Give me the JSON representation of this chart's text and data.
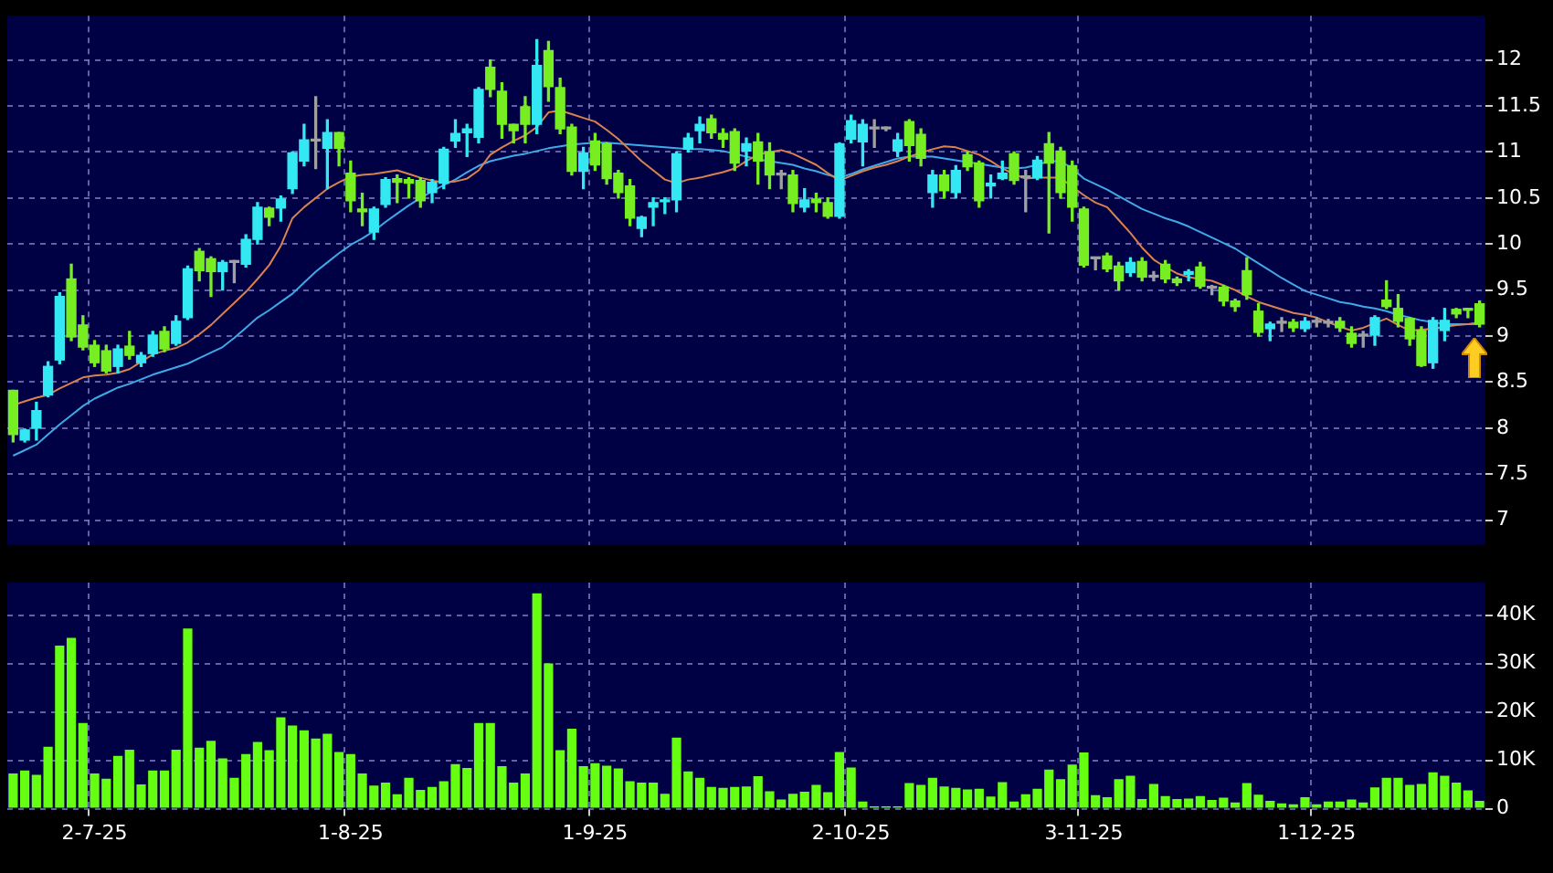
{
  "chart_data": [
    {
      "type": "candlestick",
      "categories": [
        null,
        null,
        null,
        null,
        null,
        null,
        null,
        null,
        null,
        null,
        null,
        null,
        null,
        null,
        null,
        null,
        null,
        null,
        null,
        null,
        null,
        null,
        null,
        null,
        null,
        null,
        null,
        null,
        null,
        null,
        null,
        null,
        null,
        null,
        null,
        null,
        null,
        null,
        null,
        null,
        null,
        null,
        null,
        null,
        null,
        null,
        null,
        null,
        null,
        null,
        null,
        null,
        null,
        null,
        null,
        null,
        null,
        null,
        null,
        null,
        null,
        null,
        null,
        null,
        null,
        null,
        null,
        null,
        null,
        null,
        null,
        null,
        null,
        null,
        null,
        null,
        null,
        null,
        null,
        null,
        null,
        null,
        null,
        null,
        null,
        null,
        null,
        null,
        null,
        null,
        null,
        null,
        null,
        null,
        null,
        null,
        null,
        null,
        null,
        null,
        null,
        null,
        null,
        null,
        null,
        null,
        null,
        null,
        null,
        null,
        null,
        null,
        null,
        null,
        null,
        null,
        null,
        null,
        null,
        null,
        null,
        null,
        null,
        null,
        null,
        null,
        null
      ],
      "ohlc": [
        [
          8.41,
          8.41,
          7.85,
          7.93
        ],
        [
          7.87,
          7.99,
          7.85,
          7.98
        ],
        [
          8.0,
          8.28,
          7.87,
          8.19
        ],
        [
          8.36,
          8.72,
          8.34,
          8.67
        ],
        [
          8.74,
          9.47,
          8.7,
          9.43
        ],
        [
          9.62,
          9.78,
          8.95,
          8.99
        ],
        [
          9.12,
          9.22,
          8.85,
          8.88
        ],
        [
          8.9,
          8.95,
          8.67,
          8.71
        ],
        [
          8.84,
          8.9,
          8.6,
          8.62
        ],
        [
          8.67,
          8.9,
          8.6,
          8.86
        ],
        [
          8.89,
          9.05,
          8.75,
          8.79
        ],
        [
          8.71,
          8.82,
          8.67,
          8.79
        ],
        [
          8.81,
          9.05,
          8.78,
          9.01
        ],
        [
          9.05,
          9.1,
          8.83,
          8.86
        ],
        [
          8.92,
          9.22,
          8.9,
          9.16
        ],
        [
          9.2,
          9.76,
          9.18,
          9.73
        ],
        [
          9.92,
          9.95,
          9.6,
          9.71
        ],
        [
          9.84,
          9.86,
          9.43,
          9.7
        ],
        [
          9.7,
          9.82,
          9.5,
          9.8
        ],
        [
          9.8,
          9.82,
          9.58,
          9.8
        ],
        [
          9.78,
          10.1,
          9.75,
          10.05
        ],
        [
          10.05,
          10.45,
          10.0,
          10.4
        ],
        [
          10.39,
          10.4,
          10.2,
          10.29
        ],
        [
          10.39,
          10.52,
          10.25,
          10.49
        ],
        [
          10.6,
          11.0,
          10.55,
          10.99
        ],
        [
          10.9,
          11.3,
          10.85,
          11.13
        ],
        [
          11.12,
          11.6,
          10.82,
          11.12
        ],
        [
          11.04,
          11.35,
          10.6,
          11.21
        ],
        [
          11.21,
          11.21,
          10.85,
          11.04
        ],
        [
          10.77,
          10.9,
          10.35,
          10.47
        ],
        [
          10.38,
          10.55,
          10.2,
          10.35
        ],
        [
          10.13,
          10.4,
          10.05,
          10.38
        ],
        [
          10.43,
          10.72,
          10.4,
          10.7
        ],
        [
          10.71,
          10.75,
          10.45,
          10.67
        ],
        [
          10.7,
          10.72,
          10.5,
          10.66
        ],
        [
          10.69,
          10.72,
          10.4,
          10.47
        ],
        [
          10.56,
          10.7,
          10.45,
          10.67
        ],
        [
          10.66,
          11.05,
          10.6,
          11.03
        ],
        [
          11.12,
          11.35,
          11.05,
          11.2
        ],
        [
          11.21,
          11.3,
          10.95,
          11.25
        ],
        [
          11.16,
          11.7,
          11.1,
          11.68
        ],
        [
          11.92,
          12.0,
          11.6,
          11.68
        ],
        [
          11.66,
          11.75,
          11.15,
          11.3
        ],
        [
          11.3,
          11.3,
          11.1,
          11.23
        ],
        [
          11.49,
          11.6,
          11.1,
          11.3
        ],
        [
          11.3,
          12.22,
          11.2,
          11.94
        ],
        [
          12.1,
          12.2,
          11.55,
          11.71
        ],
        [
          11.7,
          11.8,
          11.2,
          11.25
        ],
        [
          11.27,
          11.3,
          10.75,
          10.79
        ],
        [
          10.79,
          11.05,
          10.6,
          10.99
        ],
        [
          11.12,
          11.2,
          10.8,
          10.86
        ],
        [
          11.09,
          11.1,
          10.65,
          10.71
        ],
        [
          10.77,
          10.8,
          10.5,
          10.56
        ],
        [
          10.63,
          10.7,
          10.2,
          10.28
        ],
        [
          10.17,
          10.3,
          10.08,
          10.29
        ],
        [
          10.4,
          10.5,
          10.2,
          10.45
        ],
        [
          10.46,
          10.5,
          10.33,
          10.47
        ],
        [
          10.48,
          11.0,
          10.35,
          10.98
        ],
        [
          11.03,
          11.2,
          11.0,
          11.15
        ],
        [
          11.23,
          11.38,
          11.1,
          11.3
        ],
        [
          11.36,
          11.4,
          11.15,
          11.21
        ],
        [
          11.2,
          11.25,
          11.05,
          11.14
        ],
        [
          11.22,
          11.25,
          10.8,
          10.88
        ],
        [
          11.01,
          11.15,
          10.85,
          11.09
        ],
        [
          11.11,
          11.2,
          10.65,
          10.9
        ],
        [
          11.0,
          11.1,
          10.6,
          10.75
        ],
        [
          10.75,
          10.8,
          10.6,
          10.75
        ],
        [
          10.75,
          10.8,
          10.35,
          10.44
        ],
        [
          10.4,
          10.6,
          10.35,
          10.48
        ],
        [
          10.49,
          10.55,
          10.35,
          10.45
        ],
        [
          10.45,
          10.5,
          10.28,
          10.3
        ],
        [
          10.3,
          11.1,
          10.28,
          11.09
        ],
        [
          11.14,
          11.4,
          11.1,
          11.34
        ],
        [
          11.11,
          11.35,
          10.85,
          11.3
        ],
        [
          11.25,
          11.35,
          11.05,
          11.25
        ],
        [
          11.25,
          11.27,
          11.23,
          11.25
        ],
        [
          11.01,
          11.2,
          10.95,
          11.13
        ],
        [
          11.33,
          11.35,
          10.9,
          11.07
        ],
        [
          11.19,
          11.25,
          10.85,
          10.93
        ],
        [
          10.56,
          10.8,
          10.4,
          10.75
        ],
        [
          10.75,
          10.8,
          10.5,
          10.58
        ],
        [
          10.56,
          10.85,
          10.5,
          10.8
        ],
        [
          10.97,
          11.0,
          10.8,
          10.84
        ],
        [
          10.88,
          10.9,
          10.4,
          10.47
        ],
        [
          10.63,
          10.75,
          10.5,
          10.66
        ],
        [
          10.71,
          10.9,
          10.7,
          10.77
        ],
        [
          10.98,
          11.0,
          10.65,
          10.69
        ],
        [
          10.72,
          10.8,
          10.35,
          10.72
        ],
        [
          10.72,
          10.95,
          10.7,
          10.91
        ],
        [
          11.09,
          11.21,
          10.12,
          10.88
        ],
        [
          11.01,
          11.05,
          10.5,
          10.56
        ],
        [
          10.85,
          10.9,
          10.25,
          10.4
        ],
        [
          10.38,
          10.4,
          9.75,
          9.77
        ],
        [
          9.84,
          9.85,
          9.72,
          9.84
        ],
        [
          9.87,
          9.9,
          9.7,
          9.73
        ],
        [
          9.76,
          9.8,
          9.5,
          9.6
        ],
        [
          9.69,
          9.85,
          9.65,
          9.8
        ],
        [
          9.81,
          9.85,
          9.6,
          9.64
        ],
        [
          9.64,
          9.7,
          9.6,
          9.64
        ],
        [
          9.78,
          9.82,
          9.58,
          9.62
        ],
        [
          9.62,
          9.64,
          9.55,
          9.58
        ],
        [
          9.67,
          9.72,
          9.6,
          9.7
        ],
        [
          9.75,
          9.8,
          9.52,
          9.54
        ],
        [
          9.52,
          9.55,
          9.45,
          9.52
        ],
        [
          9.53,
          9.55,
          9.33,
          9.38
        ],
        [
          9.38,
          9.4,
          9.27,
          9.32
        ],
        [
          9.71,
          9.85,
          9.4,
          9.45
        ],
        [
          9.27,
          9.35,
          9.0,
          9.04
        ],
        [
          9.08,
          9.15,
          8.95,
          9.13
        ],
        [
          9.14,
          9.2,
          9.05,
          9.14
        ],
        [
          9.15,
          9.18,
          9.05,
          9.09
        ],
        [
          9.08,
          9.2,
          9.05,
          9.16
        ],
        [
          9.15,
          9.2,
          9.1,
          9.15
        ],
        [
          9.14,
          9.18,
          9.1,
          9.14
        ],
        [
          9.16,
          9.2,
          9.05,
          9.09
        ],
        [
          9.03,
          9.1,
          8.88,
          8.92
        ],
        [
          9.0,
          9.05,
          8.88,
          9.0
        ],
        [
          9.01,
          9.22,
          8.9,
          9.2
        ],
        [
          9.39,
          9.6,
          9.3,
          9.32
        ],
        [
          9.3,
          9.45,
          9.1,
          9.16
        ],
        [
          9.19,
          9.2,
          8.9,
          8.97
        ],
        [
          9.06,
          9.1,
          8.67,
          8.68
        ],
        [
          8.71,
          9.2,
          8.65,
          9.17
        ],
        [
          9.06,
          9.3,
          8.95,
          9.17
        ],
        [
          9.29,
          9.3,
          9.2,
          9.24
        ],
        [
          9.3,
          9.3,
          9.2,
          9.28
        ],
        [
          9.35,
          9.38,
          9.1,
          9.13
        ]
      ],
      "colors": [
        "#77ee22",
        "#33e8f2",
        "#33e8f2",
        "#33e8f2",
        "#33e8f2",
        "#77ee22",
        "#77ee22",
        "#77ee22",
        "#77ee22",
        "#33e8f2",
        "#77ee22",
        "#33e8f2",
        "#33e8f2",
        "#77ee22",
        "#33e8f2",
        "#33e8f2",
        "#77ee22",
        "#77ee22",
        "#33e8f2",
        "#a0a0a0",
        "#33e8f2",
        "#33e8f2",
        "#77ee22",
        "#33e8f2",
        "#33e8f2",
        "#33e8f2",
        "#a0a0a0",
        "#33e8f2",
        "#77ee22",
        "#77ee22",
        "#77ee22",
        "#33e8f2",
        "#33e8f2",
        "#77ee22",
        "#77ee22",
        "#77ee22",
        "#33e8f2",
        "#33e8f2",
        "#33e8f2",
        "#33e8f2",
        "#33e8f2",
        "#77ee22",
        "#77ee22",
        "#77ee22",
        "#77ee22",
        "#33e8f2",
        "#77ee22",
        "#77ee22",
        "#77ee22",
        "#33e8f2",
        "#77ee22",
        "#77ee22",
        "#77ee22",
        "#77ee22",
        "#33e8f2",
        "#33e8f2",
        "#33e8f2",
        "#33e8f2",
        "#33e8f2",
        "#33e8f2",
        "#77ee22",
        "#77ee22",
        "#77ee22",
        "#33e8f2",
        "#77ee22",
        "#77ee22",
        "#a0a0a0",
        "#77ee22",
        "#33e8f2",
        "#77ee22",
        "#77ee22",
        "#33e8f2",
        "#33e8f2",
        "#33e8f2",
        "#a0a0a0",
        "#a0a0a0",
        "#33e8f2",
        "#77ee22",
        "#77ee22",
        "#33e8f2",
        "#77ee22",
        "#33e8f2",
        "#77ee22",
        "#77ee22",
        "#33e8f2",
        "#33e8f2",
        "#77ee22",
        "#a0a0a0",
        "#33e8f2",
        "#77ee22",
        "#77ee22",
        "#77ee22",
        "#77ee22",
        "#a0a0a0",
        "#77ee22",
        "#77ee22",
        "#33e8f2",
        "#77ee22",
        "#a0a0a0",
        "#77ee22",
        "#77ee22",
        "#33e8f2",
        "#77ee22",
        "#a0a0a0",
        "#77ee22",
        "#77ee22",
        "#77ee22",
        "#77ee22",
        "#33e8f2",
        "#a0a0a0",
        "#77ee22",
        "#33e8f2",
        "#a0a0a0",
        "#a0a0a0",
        "#77ee22",
        "#77ee22",
        "#a0a0a0",
        "#33e8f2",
        "#77ee22",
        "#77ee22",
        "#77ee22",
        "#77ee22",
        "#33e8f2",
        "#33e8f2",
        "#77ee22",
        "#77ee22",
        "#77ee22"
      ],
      "series": [
        {
          "type": "line",
          "color": "#d9824f",
          "values": [
            8.25,
            8.29,
            8.33,
            8.36,
            8.43,
            8.49,
            8.55,
            8.57,
            8.58,
            8.6,
            8.64,
            8.72,
            8.8,
            8.84,
            8.87,
            8.93,
            9.02,
            9.12,
            9.24,
            9.36,
            9.48,
            9.62,
            9.77,
            9.98,
            10.28,
            10.4,
            10.5,
            10.6,
            10.67,
            10.73,
            10.75,
            10.76,
            10.78,
            10.8,
            10.76,
            10.72,
            10.69,
            10.67,
            10.68,
            10.71,
            10.8,
            10.97,
            11.05,
            11.12,
            11.18,
            11.27,
            11.43,
            11.45,
            11.41,
            11.37,
            11.33,
            11.24,
            11.14,
            11.02,
            10.9,
            10.8,
            10.7,
            10.66,
            10.7,
            10.72,
            10.75,
            10.78,
            10.82,
            10.9,
            10.97,
            11.0,
            11.02,
            10.98,
            10.92,
            10.86,
            10.77,
            10.69,
            10.74,
            10.79,
            10.83,
            10.86,
            10.9,
            10.95,
            10.99,
            11.03,
            11.06,
            11.05,
            11.01,
            10.97,
            10.9,
            10.82,
            10.76,
            10.71,
            10.72,
            10.72,
            10.72,
            10.62,
            10.53,
            10.45,
            10.4,
            10.26,
            10.12,
            9.96,
            9.83,
            9.75,
            9.68,
            9.64,
            9.62,
            9.6,
            9.55,
            9.5,
            9.43,
            9.37,
            9.33,
            9.29,
            9.25,
            9.23,
            9.2,
            9.15,
            9.1,
            9.06,
            9.09,
            9.14,
            9.19,
            9.12,
            9.06,
            9.07,
            9.08,
            9.1,
            9.12,
            9.13,
            9.15
          ]
        },
        {
          "type": "line",
          "color": "#3fa9e8",
          "values": [
            7.7,
            7.76,
            7.82,
            7.93,
            8.04,
            8.14,
            8.24,
            8.32,
            8.38,
            8.44,
            8.48,
            8.53,
            8.58,
            8.62,
            8.66,
            8.7,
            8.76,
            8.82,
            8.88,
            8.98,
            9.09,
            9.2,
            9.28,
            9.37,
            9.46,
            9.58,
            9.7,
            9.8,
            9.9,
            9.99,
            10.06,
            10.14,
            10.24,
            10.33,
            10.42,
            10.5,
            10.57,
            10.64,
            10.7,
            10.78,
            10.85,
            10.9,
            10.93,
            10.96,
            10.98,
            11.01,
            11.04,
            11.06,
            11.08,
            11.09,
            11.1,
            11.1,
            11.09,
            11.08,
            11.07,
            11.06,
            11.05,
            11.04,
            11.03,
            11.03,
            11.02,
            11.01,
            10.98,
            10.95,
            10.92,
            10.9,
            10.88,
            10.86,
            10.82,
            10.79,
            10.75,
            10.72,
            10.76,
            10.81,
            10.85,
            10.89,
            10.93,
            10.95,
            10.95,
            10.95,
            10.93,
            10.91,
            10.89,
            10.87,
            10.85,
            10.83,
            10.82,
            10.83,
            10.86,
            10.9,
            10.9,
            10.82,
            10.71,
            10.65,
            10.59,
            10.52,
            10.45,
            10.38,
            10.33,
            10.28,
            10.24,
            10.19,
            10.13,
            10.07,
            10.01,
            9.95,
            9.87,
            9.79,
            9.71,
            9.63,
            9.56,
            9.49,
            9.45,
            9.41,
            9.37,
            9.35,
            9.32,
            9.3,
            9.27,
            9.23,
            9.2,
            9.17,
            9.15,
            9.13,
            9.13,
            9.13,
            9.13
          ]
        }
      ],
      "ylim": [
        6.73,
        12.48
      ],
      "yticks": [
        7,
        7.5,
        8,
        8.5,
        9,
        9.5,
        10,
        10.5,
        11,
        11.5,
        12
      ],
      "grid": true,
      "tick_labels": "y",
      "marker": "none"
    },
    {
      "type": "bar",
      "categories": [
        null,
        null,
        null,
        null,
        null,
        null,
        null,
        "2-7-25",
        null,
        null,
        null,
        null,
        null,
        null,
        null,
        null,
        null,
        null,
        null,
        null,
        null,
        null,
        null,
        null,
        null,
        null,
        null,
        null,
        null,
        "1-8-25",
        null,
        null,
        null,
        null,
        null,
        null,
        null,
        null,
        null,
        null,
        null,
        null,
        null,
        null,
        null,
        null,
        null,
        null,
        null,
        null,
        "1-9-25",
        null,
        null,
        null,
        null,
        null,
        null,
        null,
        null,
        null,
        null,
        null,
        null,
        null,
        null,
        null,
        null,
        null,
        null,
        null,
        null,
        null,
        "2-10-25",
        null,
        null,
        null,
        null,
        null,
        null,
        null,
        null,
        null,
        null,
        null,
        null,
        null,
        null,
        null,
        null,
        null,
        null,
        null,
        "3-11-25",
        null,
        null,
        null,
        null,
        null,
        null,
        null,
        null,
        null,
        null,
        null,
        null,
        null,
        null,
        null,
        null,
        null,
        null,
        null,
        "1-12-25",
        null,
        null,
        null,
        null,
        null,
        null,
        null,
        null,
        null,
        null,
        null,
        null,
        null,
        null
      ],
      "values": [
        7300,
        7900,
        7000,
        12800,
        33700,
        35300,
        17700,
        7300,
        6200,
        10900,
        12200,
        5000,
        7900,
        7900,
        12200,
        37200,
        12600,
        14000,
        10400,
        6400,
        11300,
        13800,
        12100,
        18900,
        17200,
        16200,
        14500,
        15500,
        11700,
        11300,
        7300,
        4800,
        5400,
        3000,
        6400,
        3900,
        4500,
        5700,
        9200,
        8400,
        17700,
        17700,
        8800,
        5400,
        7300,
        44500,
        30000,
        12100,
        16500,
        8800,
        9400,
        8900,
        8300,
        5700,
        5400,
        5400,
        3100,
        14700,
        7700,
        6400,
        4500,
        4300,
        4500,
        4600,
        6700,
        3600,
        1900,
        3100,
        3500,
        4900,
        3400,
        11700,
        8500,
        1500,
        500,
        500,
        500,
        5300,
        4900,
        6400,
        4600,
        4300,
        4000,
        4100,
        2500,
        5500,
        1500,
        3000,
        4100,
        8100,
        6100,
        9100,
        11600,
        2800,
        2400,
        6100,
        6800,
        2000,
        5100,
        2600,
        2000,
        2100,
        2600,
        1800,
        2300,
        1300,
        5300,
        2900,
        1600,
        1100,
        900,
        2400,
        900,
        1500,
        1500,
        1900,
        1300,
        4400,
        6400,
        6400,
        4900,
        5100,
        7500,
        6800,
        5400,
        3800,
        1600
      ],
      "color": "#66ff11",
      "ylim": [
        0,
        46700
      ],
      "yticks": [
        0,
        {
          "value": 10000,
          "label": "10K"
        },
        {
          "value": 20000,
          "label": "20K"
        },
        {
          "value": 30000,
          "label": "30K"
        },
        {
          "value": 40000,
          "label": "40K"
        }
      ],
      "grid": true
    }
  ]
}
